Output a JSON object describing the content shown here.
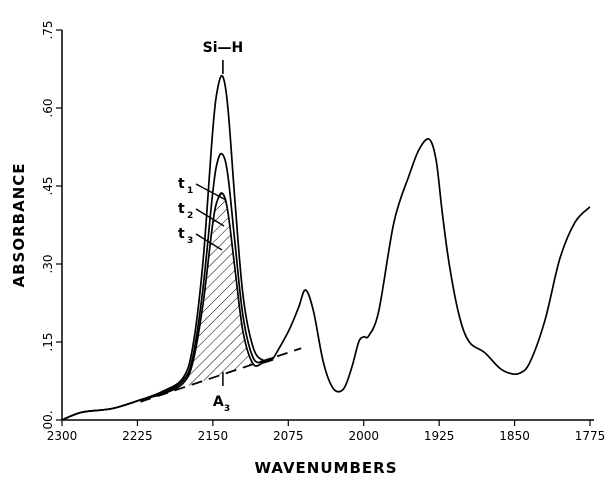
{
  "chart_data": {
    "type": "line",
    "xlabel": "WAVENUMBERS",
    "ylabel": "ABSORBANCE",
    "xlim": [
      2300,
      1775
    ],
    "ylim": [
      0,
      0.75
    ],
    "x_reversed": true,
    "xticks": [
      {
        "value": 2300,
        "label": "2300"
      },
      {
        "value": 2225,
        "label": "2225"
      },
      {
        "value": 2150,
        "label": "2150"
      },
      {
        "value": 2075,
        "label": "2075"
      },
      {
        "value": 2000,
        "label": "2000"
      },
      {
        "value": 1925,
        "label": "1925"
      },
      {
        "value": 1850,
        "label": "1850"
      },
      {
        "value": 1775,
        "label": "1775"
      }
    ],
    "yticks": [
      {
        "value": 0.0,
        "label": "00."
      },
      {
        "value": 0.15,
        "label": ".15"
      },
      {
        "value": 0.3,
        "label": ".30"
      },
      {
        "value": 0.45,
        "label": ".45"
      },
      {
        "value": 0.6,
        "label": ".60"
      },
      {
        "value": 0.75,
        "label": ".75"
      }
    ],
    "series": [
      {
        "name": "t1",
        "label": "t",
        "subscript": "1",
        "x": [
          2300,
          2280,
          2250,
          2220,
          2200,
          2180,
          2170,
          2160,
          2150,
          2145,
          2140,
          2135,
          2128,
          2120,
          2110,
          2100,
          2090
        ],
        "y": [
          0.0,
          0.015,
          0.022,
          0.04,
          0.055,
          0.08,
          0.14,
          0.3,
          0.56,
          0.64,
          0.66,
          0.6,
          0.42,
          0.24,
          0.14,
          0.115,
          0.12
        ]
      },
      {
        "name": "t2",
        "label": "t",
        "subscript": "2",
        "x": [
          2300,
          2280,
          2250,
          2220,
          2200,
          2180,
          2170,
          2160,
          2150,
          2145,
          2140,
          2135,
          2128,
          2120,
          2110,
          2100,
          2090
        ],
        "y": [
          0.0,
          0.015,
          0.022,
          0.04,
          0.052,
          0.075,
          0.12,
          0.25,
          0.44,
          0.5,
          0.51,
          0.47,
          0.34,
          0.2,
          0.12,
          0.112,
          0.118
        ]
      },
      {
        "name": "t3",
        "label": "t",
        "subscript": "3",
        "x": [
          2300,
          2280,
          2250,
          2220,
          2200,
          2180,
          2170,
          2160,
          2150,
          2145,
          2140,
          2135,
          2128,
          2120,
          2110,
          2100,
          2090
        ],
        "y": [
          0.0,
          0.015,
          0.022,
          0.04,
          0.05,
          0.07,
          0.11,
          0.22,
          0.38,
          0.425,
          0.435,
          0.4,
          0.29,
          0.17,
          0.108,
          0.11,
          0.116
        ]
      },
      {
        "name": "spectrum",
        "x": [
          2090,
          2075,
          2065,
          2058,
          2050,
          2040,
          2030,
          2020,
          2012,
          2005,
          2000,
          1995,
          1985,
          1970,
          1955,
          1945,
          1935,
          1928,
          1922,
          1915,
          1905,
          1895,
          1880,
          1865,
          1855,
          1845,
          1835,
          1820,
          1805,
          1790,
          1775
        ],
        "y": [
          0.118,
          0.17,
          0.215,
          0.25,
          0.21,
          0.11,
          0.06,
          0.06,
          0.1,
          0.15,
          0.16,
          0.162,
          0.21,
          0.38,
          0.47,
          0.52,
          0.54,
          0.5,
          0.4,
          0.3,
          0.2,
          0.15,
          0.13,
          0.1,
          0.09,
          0.09,
          0.11,
          0.19,
          0.31,
          0.38,
          0.41
        ]
      }
    ],
    "baseline": {
      "x": [
        2222,
        2090
      ],
      "y": [
        0.035,
        0.12
      ],
      "style": "dashed"
    },
    "hatched_area": {
      "label": "A",
      "subscript": "3",
      "between": [
        "t3",
        "baseline"
      ]
    },
    "annotations": [
      {
        "text": "Si—H",
        "x": 2140,
        "target_y": 0.66
      }
    ]
  }
}
